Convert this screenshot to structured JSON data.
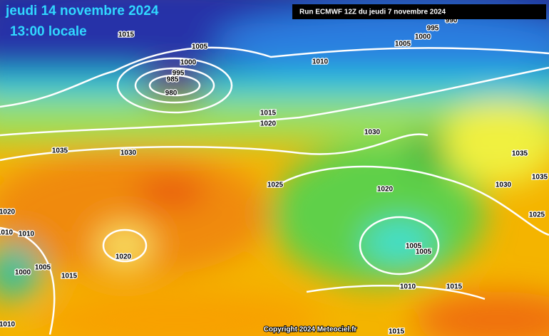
{
  "header": {
    "date": "jeudi 14 novembre 2024",
    "time": "13:00 locale",
    "run": "Run ECMWF 12Z du jeudi 7 novembre 2024"
  },
  "isobar_labels": [
    1015,
    1005,
    1000,
    995,
    985,
    980,
    1010,
    995,
    990,
    1000,
    1005,
    1015,
    1020,
    1030,
    1035,
    1030,
    1025,
    1020,
    1030,
    1035,
    1035,
    1025,
    1020,
    1010,
    1010,
    1020,
    1000,
    1005,
    1015,
    1005,
    1005,
    1010,
    1015,
    1010,
    1015
  ],
  "footer": {
    "copyright": "Copyright 2024 Meteociel.fr"
  }
}
